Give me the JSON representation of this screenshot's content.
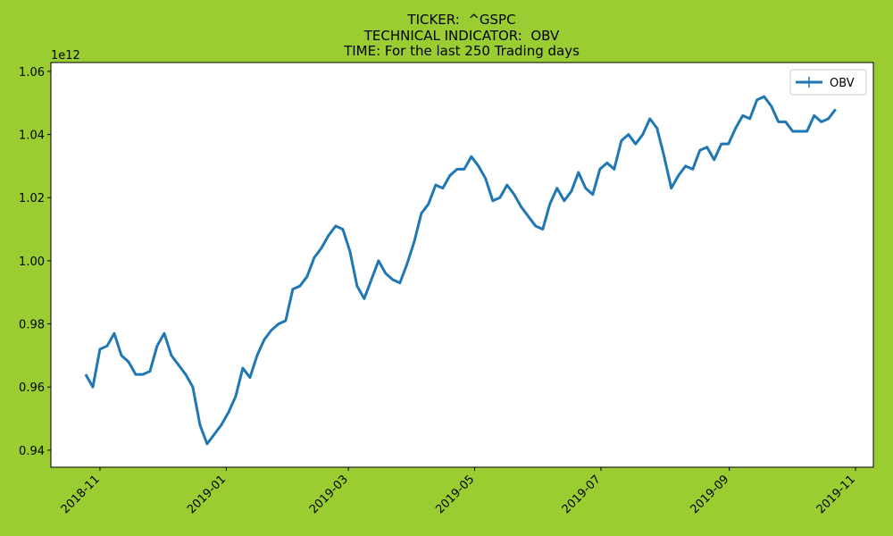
{
  "chart_data": {
    "type": "line",
    "title": [
      "TICKER:  ^GSPC",
      "TECHNICAL INDICATOR:  OBV",
      "TIME: For the last 250 Trading days"
    ],
    "y_offset_label": "1e12",
    "x": [
      -6.9,
      -3.45,
      0,
      3.45,
      6.9,
      10.35,
      13.8,
      17.25,
      20.7,
      24.15,
      27.6,
      31.05,
      34.5,
      37.95,
      41.4,
      44.85,
      48.3,
      51.75,
      55.2,
      58.65,
      62.1,
      65.55,
      69,
      72.45,
      75.9,
      79.35,
      82.8,
      86.25,
      89.7,
      93.15,
      96.6,
      100.05,
      103.5,
      106.95,
      110.4,
      113.85,
      117.3,
      120.75,
      124.2,
      127.65,
      131.1,
      134.55,
      138,
      141.45,
      144.9,
      148.35,
      151.8,
      155.25,
      158.7,
      162.15,
      165.6,
      169.05,
      172.5,
      175.95,
      179.4,
      182.85,
      186.3,
      189.75,
      193.2,
      196.65,
      200.1,
      203.55,
      207,
      210.45,
      213.9,
      217.35,
      220.8,
      224.25,
      227.7,
      231.15,
      234.6,
      238.05,
      241.5,
      244.95,
      248.4,
      251.85,
      255.3,
      258.75,
      262.2,
      265.65,
      269.1,
      272.55,
      276,
      279.45,
      282.9,
      286.35,
      289.8,
      293.25,
      296.7,
      300.15,
      303.6,
      307.05,
      310.5,
      313.95,
      317.4,
      320.85,
      324.3,
      327.75,
      331.2,
      334.65,
      338.1,
      341.55,
      345,
      348.45,
      351.9,
      355.35
    ],
    "series": [
      {
        "name": "OBV",
        "color": "#1f77b4",
        "values": [
          0.964,
          0.96,
          0.972,
          0.973,
          0.977,
          0.97,
          0.968,
          0.964,
          0.964,
          0.965,
          0.973,
          0.977,
          0.97,
          0.967,
          0.964,
          0.96,
          0.948,
          0.942,
          0.945,
          0.948,
          0.952,
          0.957,
          0.966,
          0.963,
          0.97,
          0.975,
          0.978,
          0.98,
          0.981,
          0.991,
          0.992,
          0.995,
          1.001,
          1.004,
          1.008,
          1.011,
          1.01,
          1.003,
          0.992,
          0.988,
          0.994,
          1.0,
          0.996,
          0.994,
          0.993,
          0.999,
          1.006,
          1.015,
          1.018,
          1.024,
          1.023,
          1.027,
          1.029,
          1.029,
          1.033,
          1.03,
          1.026,
          1.019,
          1.02,
          1.024,
          1.021,
          1.017,
          1.014,
          1.011,
          1.01,
          1.018,
          1.023,
          1.019,
          1.022,
          1.028,
          1.023,
          1.021,
          1.029,
          1.031,
          1.029,
          1.038,
          1.04,
          1.037,
          1.04,
          1.045,
          1.042,
          1.033,
          1.023,
          1.027,
          1.03,
          1.029,
          1.035,
          1.036,
          1.032,
          1.037,
          1.037,
          1.042,
          1.046,
          1.045,
          1.051,
          1.052,
          1.049,
          1.044,
          1.044,
          1.041,
          1.041,
          1.041,
          1.046,
          1.044,
          1.045,
          1.048
        ]
      }
    ],
    "xlim": [
      -23.7,
      373.6
    ],
    "xticks": [
      {
        "value": 0,
        "label": "2018-11"
      },
      {
        "value": 61,
        "label": "2019-01"
      },
      {
        "value": 120,
        "label": "2019-03"
      },
      {
        "value": 181,
        "label": "2019-05"
      },
      {
        "value": 242,
        "label": "2019-07"
      },
      {
        "value": 304,
        "label": "2019-09"
      },
      {
        "value": 365,
        "label": "2019-11"
      }
    ],
    "ylim": [
      0.9346,
      1.0628
    ],
    "yticks": [
      0.94,
      0.96,
      0.98,
      {
        "value": 1,
        "label": "1.00"
      },
      1.02,
      1.04,
      1.06
    ],
    "grid": false,
    "legend": "upper right"
  }
}
